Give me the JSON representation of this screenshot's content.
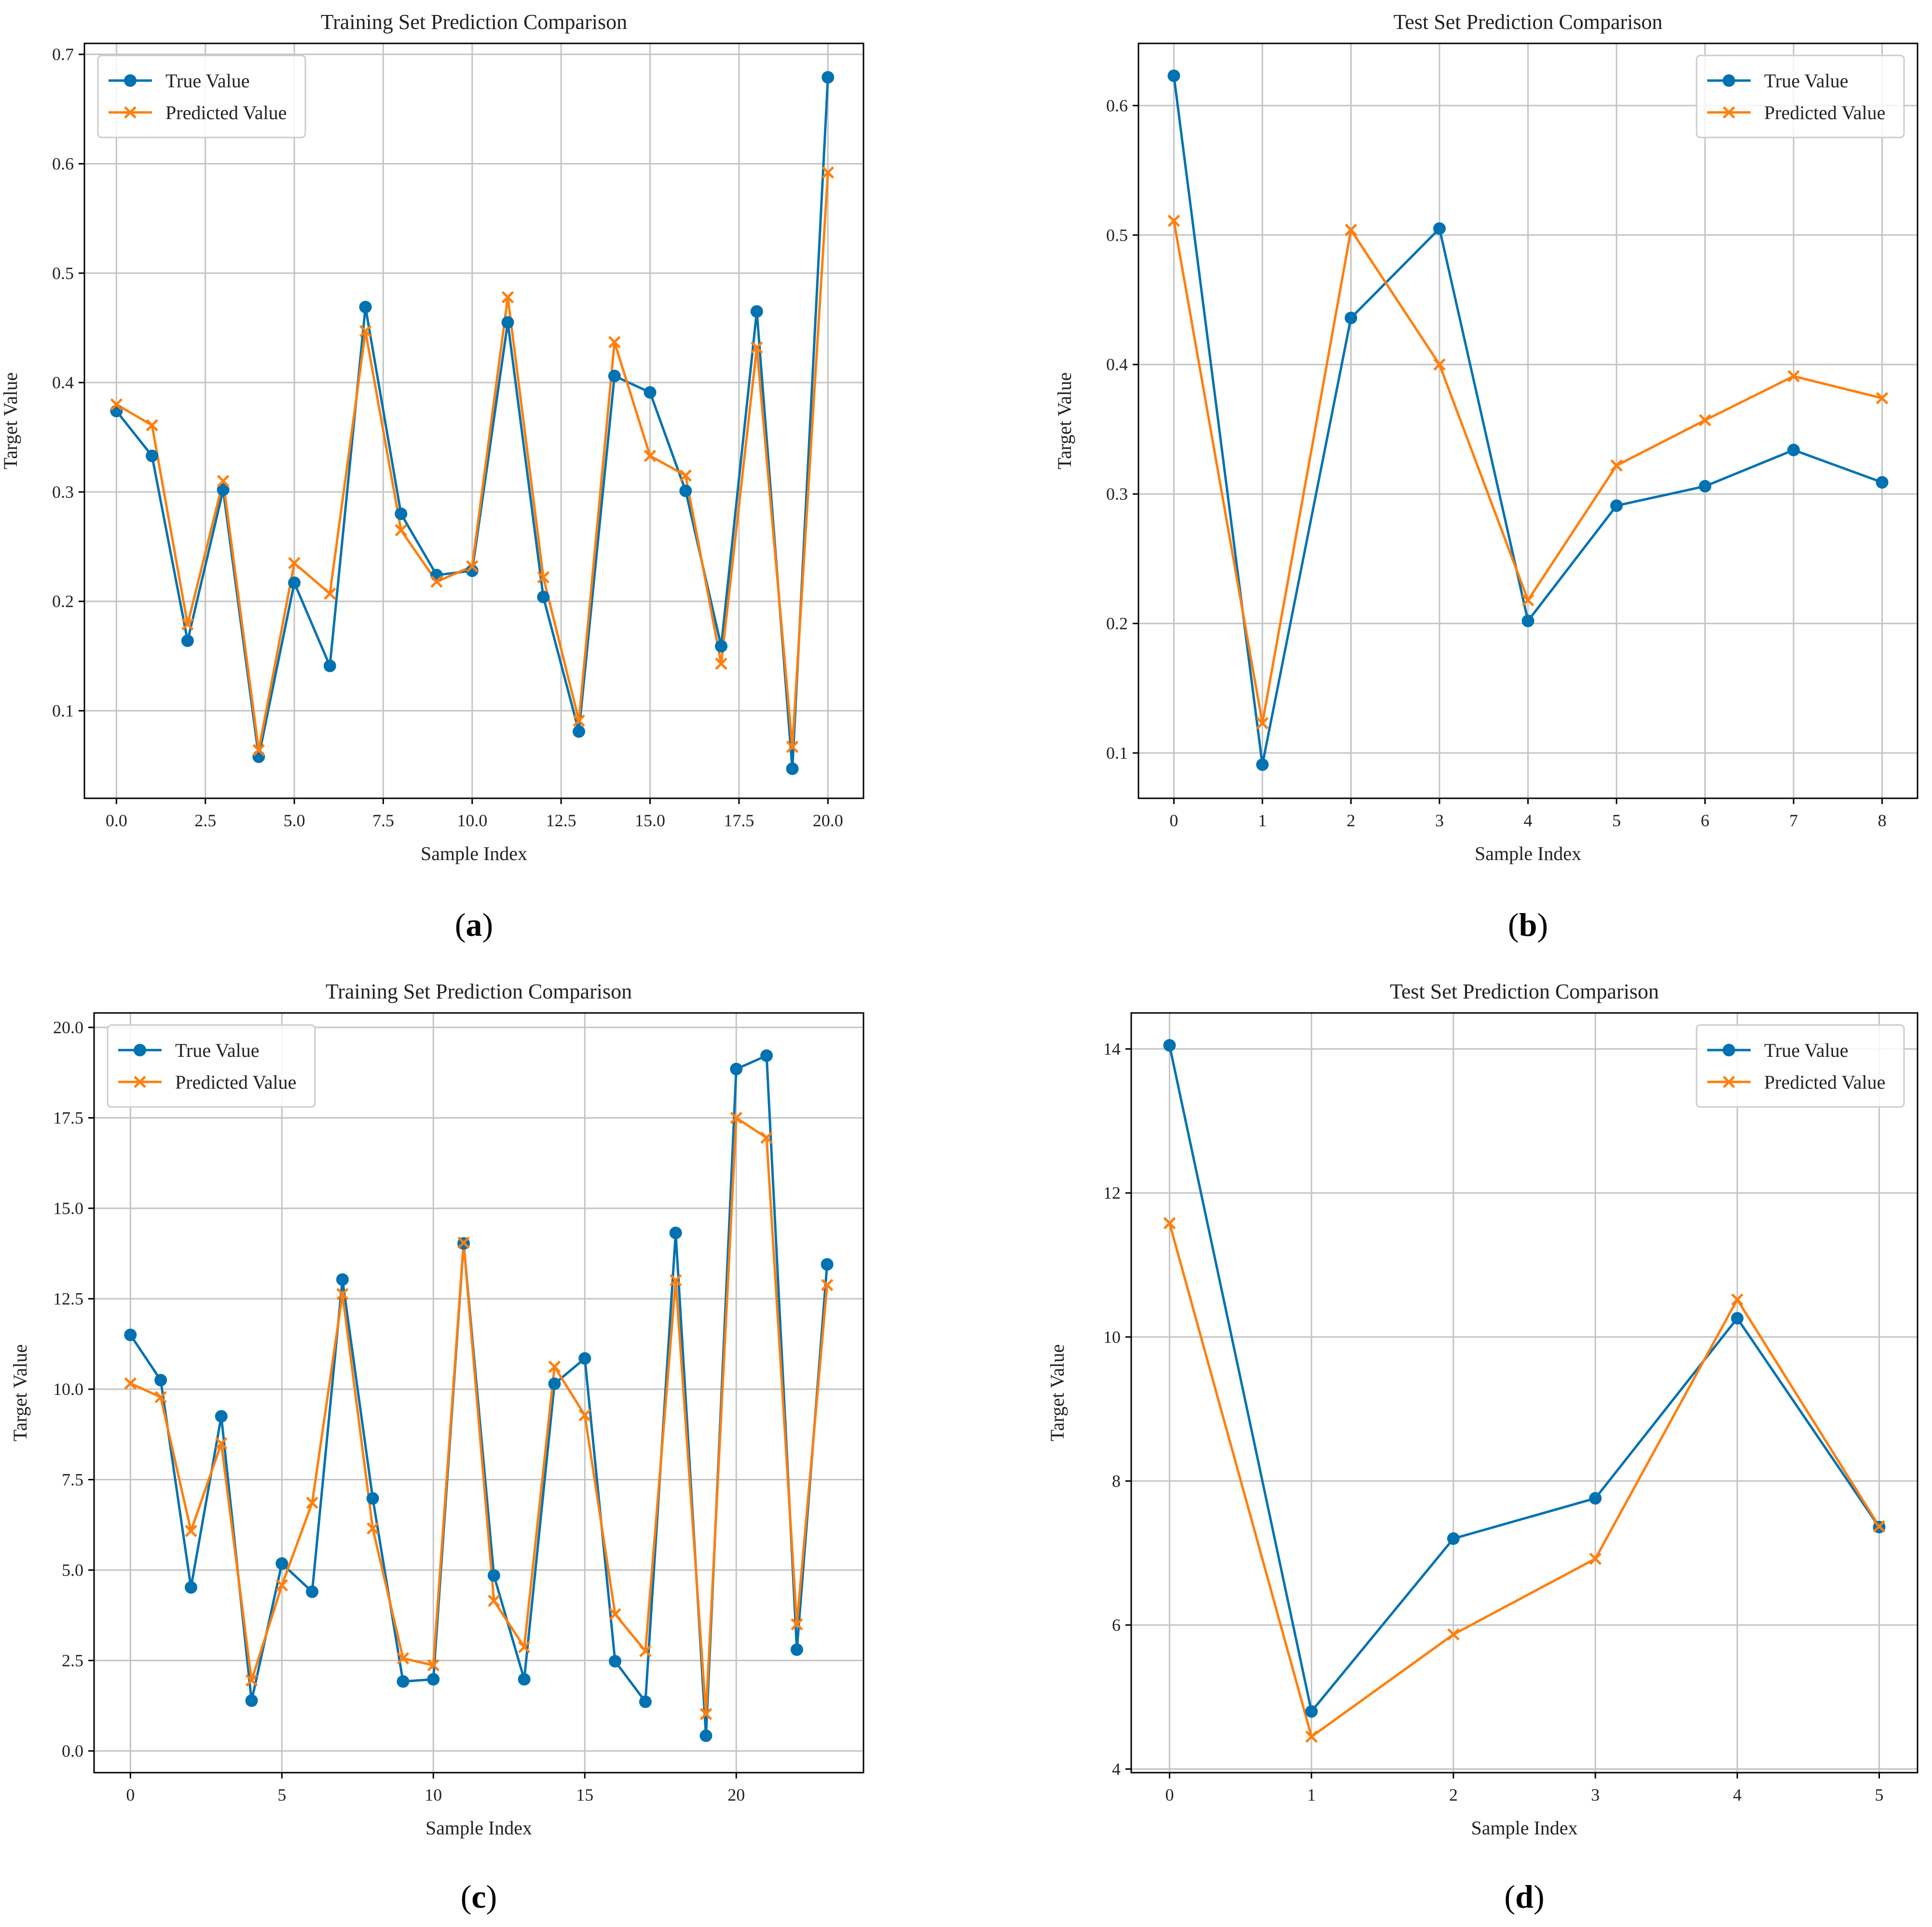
{
  "colors": {
    "true_series": "#0072B2",
    "pred_series": "#FF7F0E",
    "grid": "#c4c4c4"
  },
  "legend": {
    "true_label": "True Value",
    "pred_label": "Predicted Value",
    "true_marker_icon": "circle-marker-icon",
    "pred_marker_icon": "x-marker-icon"
  },
  "chart_data": [
    {
      "id": "a",
      "caption": "a",
      "type": "line",
      "title": "Training Set Prediction Comparison",
      "xlabel": "Sample Index",
      "ylabel": "Target Value",
      "xlim": [
        -0.9,
        21.0
      ],
      "ylim": [
        0.02,
        0.71
      ],
      "xticks": [
        0,
        2.5,
        5,
        7.5,
        10,
        12.5,
        15,
        17.5,
        20
      ],
      "xtick_labels": [
        "0.0",
        "2.5",
        "5.0",
        "7.5",
        "10.0",
        "12.5",
        "15.0",
        "17.5",
        "20.0"
      ],
      "yticks": [
        0.1,
        0.2,
        0.3,
        0.4,
        0.5,
        0.6,
        0.7
      ],
      "ytick_labels": [
        "0.1",
        "0.2",
        "0.3",
        "0.4",
        "0.5",
        "0.6",
        "0.7"
      ],
      "legend_position": "top-left",
      "grid": true,
      "x": [
        0,
        1,
        2,
        3,
        4,
        5,
        6,
        7,
        8,
        9,
        10,
        11,
        12,
        13,
        14,
        15,
        16,
        17,
        18,
        19,
        20
      ],
      "series": [
        {
          "name": "True Value",
          "values": [
            0.374,
            0.333,
            0.164,
            0.302,
            0.058,
            0.217,
            0.141,
            0.469,
            0.28,
            0.224,
            0.228,
            0.455,
            0.204,
            0.081,
            0.406,
            0.391,
            0.301,
            0.159,
            0.465,
            0.047,
            0.679
          ]
        },
        {
          "name": "Predicted Value",
          "values": [
            0.38,
            0.361,
            0.179,
            0.31,
            0.064,
            0.235,
            0.207,
            0.447,
            0.265,
            0.218,
            0.232,
            0.478,
            0.222,
            0.091,
            0.437,
            0.333,
            0.315,
            0.143,
            0.432,
            0.067,
            0.592
          ]
        }
      ]
    },
    {
      "id": "b",
      "caption": "b",
      "type": "line",
      "title": "Test Set Prediction Comparison",
      "xlabel": "Sample Index",
      "ylabel": "Target Value",
      "xlim": [
        -0.4,
        8.4
      ],
      "ylim": [
        0.065,
        0.648
      ],
      "xticks": [
        0,
        1,
        2,
        3,
        4,
        5,
        6,
        7,
        8
      ],
      "xtick_labels": [
        "0",
        "1",
        "2",
        "3",
        "4",
        "5",
        "6",
        "7",
        "8"
      ],
      "yticks": [
        0.1,
        0.2,
        0.3,
        0.4,
        0.5,
        0.6
      ],
      "ytick_labels": [
        "0.1",
        "0.2",
        "0.3",
        "0.4",
        "0.5",
        "0.6"
      ],
      "legend_position": "top-right",
      "grid": true,
      "x": [
        0,
        1,
        2,
        3,
        4,
        5,
        6,
        7,
        8
      ],
      "series": [
        {
          "name": "True Value",
          "values": [
            0.623,
            0.091,
            0.436,
            0.505,
            0.202,
            0.291,
            0.306,
            0.334,
            0.309
          ]
        },
        {
          "name": "Predicted Value",
          "values": [
            0.511,
            0.123,
            0.504,
            0.4,
            0.218,
            0.322,
            0.357,
            0.391,
            0.374
          ]
        }
      ]
    },
    {
      "id": "c",
      "caption": "c",
      "type": "line",
      "title": "Training Set Prediction Comparison",
      "xlabel": "Sample Index",
      "ylabel": "Target Value",
      "xlim": [
        -1.2,
        24.2
      ],
      "ylim": [
        -0.6,
        20.4
      ],
      "xticks": [
        0,
        5,
        10,
        15,
        20
      ],
      "xtick_labels": [
        "0",
        "5",
        "10",
        "15",
        "20"
      ],
      "yticks": [
        0,
        2.5,
        5,
        7.5,
        10,
        12.5,
        15,
        17.5,
        20
      ],
      "ytick_labels": [
        "0.0",
        "2.5",
        "5.0",
        "7.5",
        "10.0",
        "12.5",
        "15.0",
        "17.5",
        "20.0"
      ],
      "legend_position": "top-left",
      "grid": true,
      "x": [
        0,
        1,
        2,
        3,
        4,
        5,
        6,
        7,
        8,
        9,
        10,
        11,
        12,
        13,
        14,
        15,
        16,
        17,
        18,
        19,
        20,
        21,
        22,
        23
      ],
      "series": [
        {
          "name": "True Value",
          "values": [
            11.5,
            10.25,
            4.52,
            9.25,
            1.39,
            5.18,
            4.4,
            13.03,
            6.98,
            1.92,
            1.98,
            14.03,
            4.85,
            1.98,
            10.15,
            10.85,
            2.48,
            1.36,
            14.32,
            0.42,
            18.85,
            19.22,
            2.8,
            13.45
          ]
        },
        {
          "name": "Predicted Value",
          "values": [
            10.16,
            9.78,
            6.08,
            8.5,
            1.95,
            4.58,
            6.86,
            12.63,
            6.15,
            2.56,
            2.37,
            14.05,
            4.15,
            2.87,
            10.62,
            9.28,
            3.78,
            2.76,
            13.01,
            1.02,
            17.5,
            16.95,
            3.5,
            12.88
          ]
        }
      ]
    },
    {
      "id": "d",
      "caption": "d",
      "type": "line",
      "title": "Test Set Prediction Comparison",
      "xlabel": "Sample Index",
      "ylabel": "Target Value",
      "xlim": [
        -0.27,
        5.27
      ],
      "ylim": [
        3.95,
        14.5
      ],
      "xticks": [
        0,
        1,
        2,
        3,
        4,
        5
      ],
      "xtick_labels": [
        "0",
        "1",
        "2",
        "3",
        "4",
        "5"
      ],
      "yticks": [
        4,
        6,
        8,
        10,
        12,
        14
      ],
      "ytick_labels": [
        "4",
        "6",
        "8",
        "10",
        "12",
        "14"
      ],
      "legend_position": "top-right",
      "grid": true,
      "x": [
        0,
        1,
        2,
        3,
        4,
        5
      ],
      "series": [
        {
          "name": "True Value",
          "values": [
            14.05,
            4.8,
            7.2,
            7.76,
            10.26,
            7.36
          ]
        },
        {
          "name": "Predicted Value",
          "values": [
            11.58,
            4.45,
            5.87,
            6.92,
            10.52,
            7.37
          ]
        }
      ]
    }
  ]
}
